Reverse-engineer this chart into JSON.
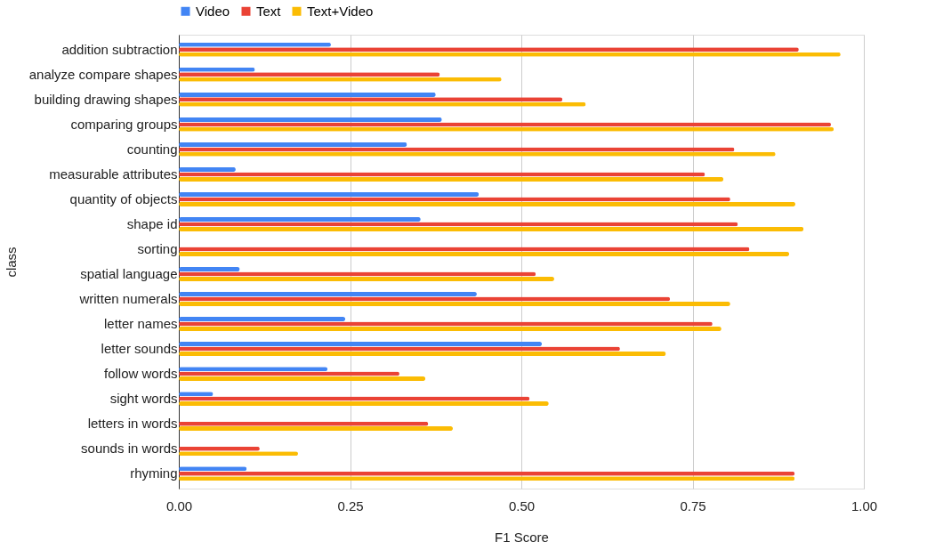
{
  "chart_data": {
    "type": "bar",
    "orientation": "horizontal",
    "xlabel": "F1 Score",
    "ylabel": "class",
    "categories": [
      "addition subtraction",
      "analyze compare shapes",
      "building drawing shapes",
      "comparing groups",
      "counting",
      "measurable attributes",
      "quantity of objects",
      "shape id",
      "sorting",
      "spatial language",
      "written numerals",
      "letter names",
      "letter sounds",
      "follow words",
      "sight words",
      "letters in words",
      "sounds in words",
      "rhyming"
    ],
    "series": [
      {
        "name": "Video",
        "color": "#4285f4",
        "values": [
          0.222,
          0.111,
          0.375,
          0.384,
          0.333,
          0.083,
          0.438,
          0.353,
          0.0,
          0.089,
          0.435,
          0.243,
          0.53,
          0.217,
          0.05,
          0.0,
          0.0,
          0.099
        ]
      },
      {
        "name": "Text",
        "color": "#ea4335",
        "values": [
          0.905,
          0.381,
          0.56,
          0.952,
          0.811,
          0.768,
          0.805,
          0.816,
          0.833,
          0.521,
          0.717,
          0.779,
          0.644,
          0.322,
          0.512,
          0.364,
          0.118,
          0.899
        ]
      },
      {
        "name": "Text+Video",
        "color": "#fbbc04",
        "values": [
          0.966,
          0.471,
          0.594,
          0.956,
          0.871,
          0.795,
          0.9,
          0.912,
          0.891,
          0.548,
          0.805,
          0.792,
          0.711,
          0.36,
          0.54,
          0.4,
          0.174,
          0.899
        ]
      }
    ],
    "xlim": [
      0,
      1
    ],
    "xticks": [
      {
        "value": 0,
        "label": "0.00"
      },
      {
        "value": 0.25,
        "label": "0.25"
      },
      {
        "value": 0.5,
        "label": "0.50"
      },
      {
        "value": 0.75,
        "label": "0.75"
      },
      {
        "value": 1,
        "label": "1.00"
      }
    ],
    "grid": "x",
    "legend": "top"
  }
}
